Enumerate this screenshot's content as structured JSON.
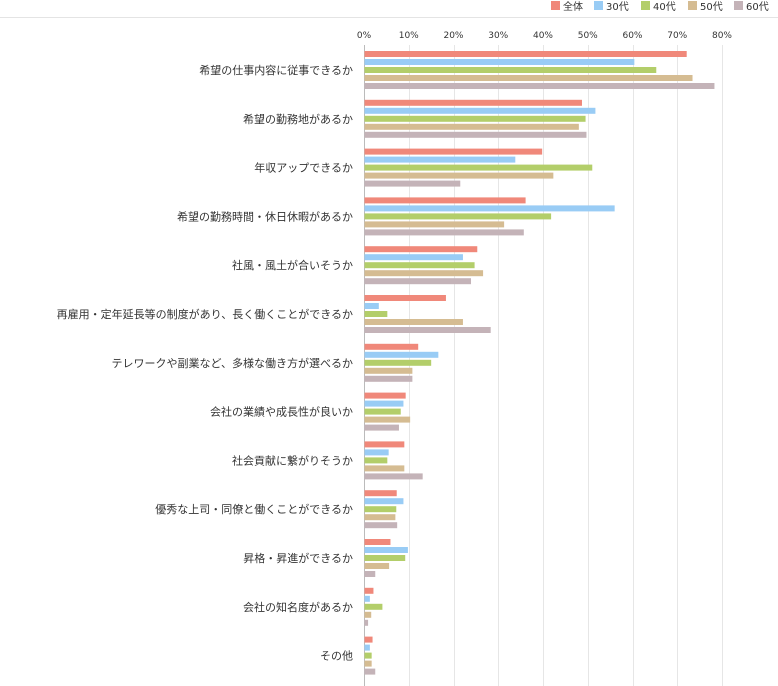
{
  "chart_data": {
    "type": "bar",
    "orientation": "horizontal",
    "title": "",
    "xlabel": "",
    "ylabel": "",
    "xlim": [
      0,
      80
    ],
    "ticks": [
      "0%",
      "10%",
      "20%",
      "30%",
      "40%",
      "50%",
      "60%",
      "70%",
      "80%"
    ],
    "grid": true,
    "legend_position": "top-right",
    "categories": [
      "希望の仕事内容に従事できるか",
      "希望の勤務地があるか",
      "年収アップできるか",
      "希望の勤務時間・休日休暇があるか",
      "社風・風土が合いそうか",
      "再雇用・定年延長等の制度があり、長く働くことができるか",
      "テレワークや副業など、多様な働き方が選べるか",
      "会社の業績や成長性が良いか",
      "社会貢献に繋がりそうか",
      "優秀な上司・同僚と働くことができるか",
      "昇格・昇進ができるか",
      "会社の知名度があるか",
      "その他"
    ],
    "series": [
      {
        "name": "全体",
        "color": "#F0887A",
        "values": [
          72.0,
          48.6,
          39.7,
          36.0,
          25.2,
          18.2,
          12.0,
          9.2,
          8.9,
          7.2,
          5.8,
          2.0,
          1.8
        ]
      },
      {
        "name": "30代",
        "color": "#99CCF5",
        "values": [
          60.3,
          51.6,
          33.7,
          55.9,
          22.0,
          3.2,
          16.5,
          8.7,
          5.4,
          8.7,
          9.7,
          1.2,
          1.2
        ]
      },
      {
        "name": "40代",
        "color": "#B3CE6A",
        "values": [
          65.2,
          49.4,
          50.9,
          41.7,
          24.6,
          5.1,
          14.9,
          8.1,
          5.1,
          7.1,
          9.1,
          4.0,
          1.6
        ]
      },
      {
        "name": "50代",
        "color": "#D5BC92",
        "values": [
          73.3,
          47.9,
          42.2,
          31.2,
          26.5,
          22.0,
          10.7,
          10.2,
          8.9,
          6.9,
          5.5,
          1.5,
          1.6
        ]
      },
      {
        "name": "60代",
        "color": "#C4B3B8",
        "values": [
          78.2,
          49.6,
          21.4,
          35.6,
          23.8,
          28.2,
          10.7,
          7.7,
          13.0,
          7.3,
          2.4,
          0.8,
          2.4
        ]
      }
    ]
  }
}
